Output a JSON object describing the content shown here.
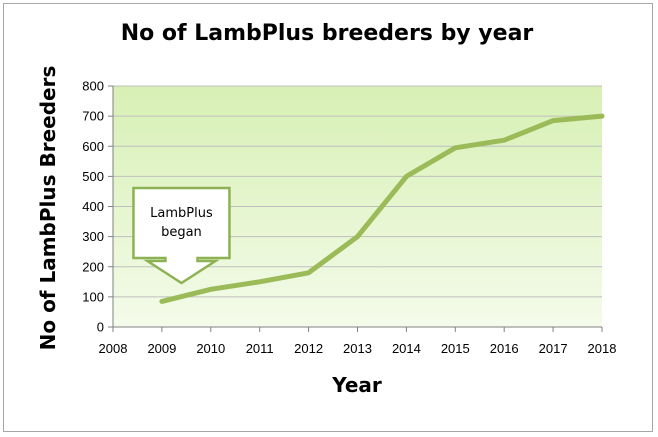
{
  "chart_data": {
    "type": "line",
    "title": "No of LambPlus breeders by year",
    "xlabel": "Year",
    "ylabel": "No of LambPlus Breeders",
    "x": [
      2009,
      2010,
      2011,
      2012,
      2013,
      2014,
      2015,
      2016,
      2017,
      2018
    ],
    "series": [
      {
        "values": [
          85,
          125,
          150,
          180,
          300,
          500,
          595,
          620,
          685,
          700
        ]
      }
    ],
    "xlim": [
      2008,
      2018
    ],
    "ylim": [
      0,
      800
    ],
    "x_ticks": [
      2008,
      2009,
      2010,
      2011,
      2012,
      2013,
      2014,
      2015,
      2016,
      2017,
      2018
    ],
    "y_ticks": [
      0,
      100,
      200,
      300,
      400,
      500,
      600,
      700,
      800
    ],
    "grid": "horizontal",
    "legend": "none",
    "annotation": {
      "text_line1": "LambPlus",
      "text_line2": "began",
      "x": 2009.4
    },
    "colors": {
      "line": "#9bbb59",
      "plot_bg_top": "#d7f0b4",
      "plot_bg_bottom": "#f4fbea",
      "grid": "#bfbfbf",
      "callout_border": "#8db254"
    }
  }
}
